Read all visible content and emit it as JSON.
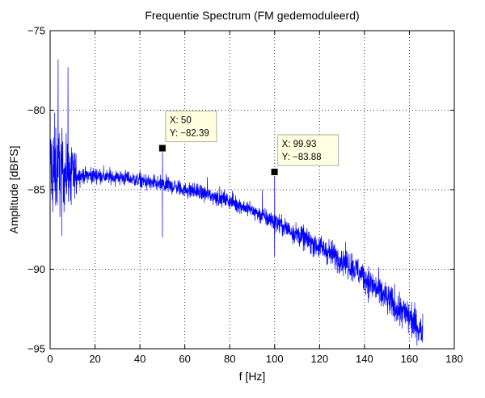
{
  "chart_data": {
    "type": "line",
    "title": "Frequentie Spectrum (FM gedemoduleerd)",
    "xlabel": "f [Hz]",
    "ylabel": "Amplitude [dBFS]",
    "xlim": [
      0,
      180
    ],
    "ylim": [
      -95,
      -75
    ],
    "xticks": [
      0,
      20,
      40,
      60,
      80,
      100,
      120,
      140,
      160,
      180
    ],
    "yticks": [
      -95,
      -90,
      -85,
      -80,
      -75
    ],
    "grid": true,
    "line_color": "#0000ff",
    "series": [
      {
        "x": [
          0.2,
          1,
          2,
          4,
          6,
          8,
          10,
          15,
          20,
          25,
          30,
          35,
          40,
          45,
          50,
          55,
          60,
          65,
          70,
          75,
          80,
          85,
          90,
          95,
          100,
          105,
          110,
          115,
          120,
          125,
          130,
          135,
          140,
          145,
          150,
          155,
          160,
          163,
          166
        ],
        "values": [
          -83.5,
          -84.0,
          -83.6,
          -83.8,
          -84.0,
          -83.9,
          -84.1,
          -84.1,
          -84.1,
          -84.2,
          -84.2,
          -84.3,
          -84.4,
          -84.6,
          -84.7,
          -84.8,
          -85.0,
          -85.1,
          -85.3,
          -85.5,
          -85.7,
          -86.0,
          -86.3,
          -86.7,
          -87.0,
          -87.4,
          -87.8,
          -88.2,
          -88.6,
          -89.0,
          -89.4,
          -89.9,
          -90.5,
          -91.2,
          -91.9,
          -92.5,
          -93.0,
          -93.5,
          -94.0
        ]
      }
    ],
    "annotations": [
      {
        "x_label": "X: 50",
        "y_label": "Y: -82.39",
        "x": 50,
        "y": -82.39
      },
      {
        "x_label": "X: 99.93",
        "y_label": "Y: -83.88",
        "x": 99.93,
        "y": -83.88
      }
    ]
  }
}
